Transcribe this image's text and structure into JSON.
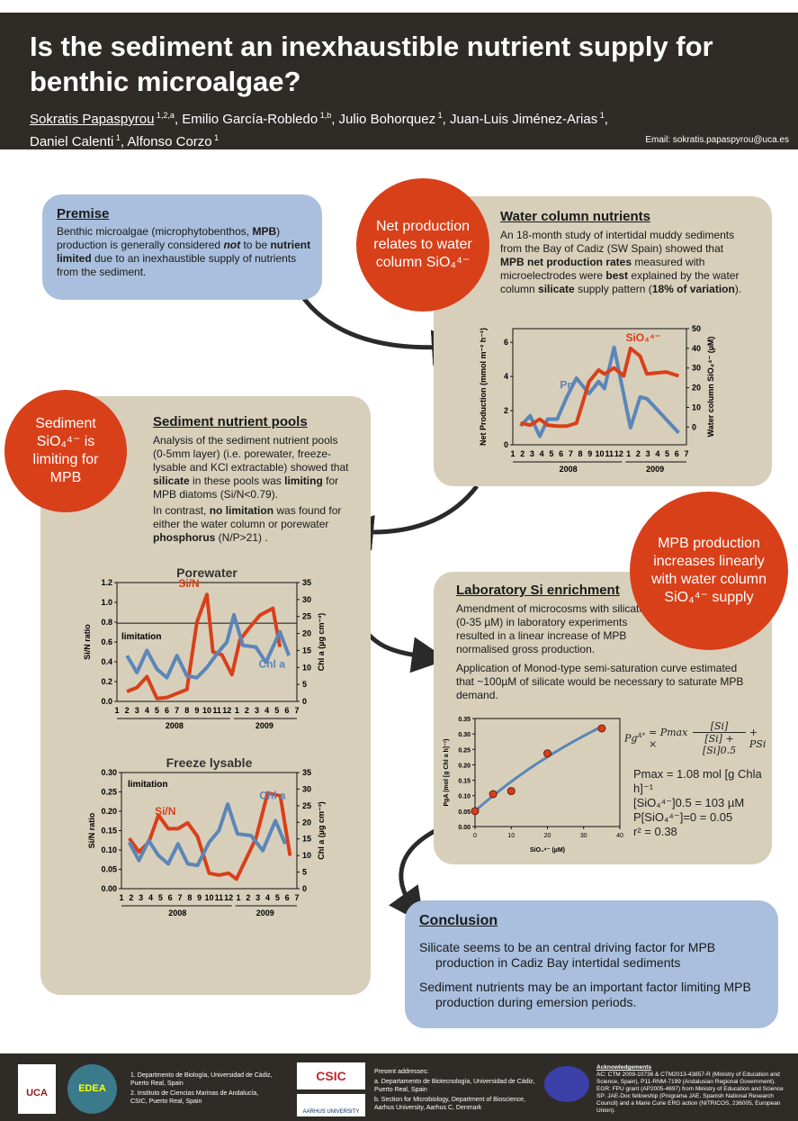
{
  "header": {
    "title": "Is the sediment an inexhaustible nutrient supply for benthic microalgae?",
    "authors": [
      {
        "name": "Sokratis Papaspyrou",
        "sup": "1,2,a"
      },
      {
        "name": "Emilio García-Robledo",
        "sup": "1,b"
      },
      {
        "name": "Julio Bohorquez",
        "sup": "1"
      },
      {
        "name": "Juan-Luis Jiménez-Arias",
        "sup": "1"
      },
      {
        "name": "Daniel Calenti",
        "sup": "1"
      },
      {
        "name": "Alfonso Corzo",
        "sup": "1"
      }
    ],
    "email": "Email: sokratis.papaspyrou@uca.es"
  },
  "colors": {
    "header_bg": "#2f2c28",
    "beige_box": "#d8cfbb",
    "blue_box": "#a9bfdd",
    "red_circle": "#d8401a",
    "series_red": "#d8401a",
    "series_blue": "#5b86b8"
  },
  "premise": {
    "heading": "Premise",
    "segments": [
      {
        "t": "Benthic microalgae (microphytobenthos, "
      },
      {
        "t": "MPB",
        "b": true
      },
      {
        "t": ") production is generally considered "
      },
      {
        "t": "not",
        "b": true,
        "i": true
      },
      {
        "t": " to be "
      },
      {
        "t": "nutrient limited",
        "b": true
      },
      {
        "t": " due to an inexhaustible supply of nutrients from the sediment."
      }
    ]
  },
  "circle_net": "Net production relates to water column SiO₄⁴⁻",
  "water": {
    "heading": "Water column nutrients",
    "segments": [
      {
        "t": "An 18-month study of intertidal muddy sediments from the Bay of Cadiz (SW Spain) showed that "
      },
      {
        "t": "MPB net production rates",
        "b": true
      },
      {
        "t": " measured with microelectrodes were "
      },
      {
        "t": "best",
        "b": true
      },
      {
        "t": " explained by the water column "
      },
      {
        "t": "silicate",
        "b": true
      },
      {
        "t": " supply pattern ("
      },
      {
        "t": "18% of variation",
        "b": true
      },
      {
        "t": ")."
      }
    ]
  },
  "circle_sediment": "Sediment SiO₄⁴⁻ is limiting for MPB",
  "sediment": {
    "heading": "Sediment nutrient pools",
    "p1": [
      {
        "t": "Analysis of the sediment nutrient pools (0-5mm layer) (i.e. porewater, freeze-lysable and KCl extractable) showed that "
      },
      {
        "t": "silicate",
        "b": true
      },
      {
        "t": " in these pools was "
      },
      {
        "t": "limiting",
        "b": true
      },
      {
        "t": " for MPB diatoms (Si/N<0.79)."
      }
    ],
    "p2": [
      {
        "t": "In contrast, "
      },
      {
        "t": "no limitation",
        "b": true
      },
      {
        "t": " was found for either the water column or porewater "
      },
      {
        "t": "phosphorus",
        "b": true
      },
      {
        "t": " (N/P>21) ."
      }
    ]
  },
  "circle_mpb": "MPB production increases linearly with water column SiO₄⁴⁻ supply",
  "lab": {
    "heading": "Laboratory Si enrichment",
    "p1": "Amendment of microcosms with silicate (0-35 µM) in laboratory experiments resulted in a linear increase of MPB normalised gross production.",
    "p2": "Application of Monod-type semi-saturation curve estimated that ~100µM of silicate would be necessary to saturate MPB demand.",
    "equation": "P_g^A* = P_max × [Si] / ([Si] + [Si]_0.5) + P_Si",
    "eq_lhs": "Pg",
    "eq_lhs_sup": "A*",
    "eq_mid": "= Pmax ×",
    "eq_num": "[Si]",
    "eq_den": "[Si] + [Si]0.5",
    "eq_tail": "+ PSi",
    "params": [
      "Pmax = 1.08 mol [g Chla h]⁻¹",
      "[SiO₄⁴⁻]0.5 = 103 µM",
      "P[SiO₄⁴⁻]=0 = 0.05",
      "r² = 0.38"
    ]
  },
  "conclusion": {
    "heading": "Conclusion",
    "items": [
      "Silicate seems to be an central driving factor for MPB production in Cadiz Bay intertidal sediments",
      "Sediment nutrients may be an important factor limiting MPB production during emersion periods."
    ]
  },
  "footer": {
    "uca_logo": "UCA Universidad de Cádiz",
    "edea_logo": "EDEA",
    "csic_logo": "CSIC",
    "aarhus_logo": "AARHUS UNIVERSITY",
    "affiliations": [
      "1. Departmento de Biología, Universidad de Cádiz, Puerto Real, Spain",
      "2. Instituto de Ciencias Marinas de Andalucía, CSIC, Puerto Real, Spain"
    ],
    "present_title": "Present addresses:",
    "present": [
      "a. Departamento de Biotecnología, Universidad de Cádiz, Puerto Real, Spain",
      "b. Section for Microbiology, Department of Bioscience, Aarhus University, Aarhus C, Denmark"
    ],
    "ack_title": "Acknowledgements",
    "ack": [
      "AC: CTM 2009-10736 & CTM2013-43857-R (Ministry of Education and Science, Spain), P11-RNM-7199 (Andalusian Regional Government).",
      "EGR: FPU grant (AP2005-4697) from Ministry of Education and Science",
      "SP: JAE-Doc fellowship (Programa JAE, Spanish National Research Council) and a Marie Curie ERG action (NITRICOS, 236005, European Union)."
    ]
  },
  "chart_data": [
    {
      "id": "water",
      "type": "line",
      "title": "",
      "xlabel": "",
      "ylabel": "Net Production (mmol m⁻² h⁻¹)",
      "y2label": "Water column SiO₄⁴⁻ (µM)",
      "x_tick_labels": [
        "1",
        "2",
        "3",
        "4",
        "5",
        "6",
        "7",
        "8",
        "9",
        "10",
        "11",
        "12",
        "1",
        "2",
        "3",
        "4",
        "5",
        "6",
        "7"
      ],
      "years": [
        "2008",
        "2009"
      ],
      "ylim": [
        0,
        6.8
      ],
      "yticks": [
        0,
        2,
        4,
        6
      ],
      "y2lim": [
        -9,
        50
      ],
      "y2ticks": [
        0,
        10,
        20,
        30,
        40,
        50
      ],
      "xlim": [
        1,
        19
      ],
      "series": [
        {
          "name": "Pn",
          "axis": "left",
          "color": "#5b86b8",
          "x": [
            1.8,
            2.8,
            3.8,
            4.6,
            5.6,
            6.6,
            7.6,
            8.9,
            9.9,
            10.5,
            11.5,
            13.2,
            14.2,
            14.9,
            18.2
          ],
          "y": [
            1.1,
            1.7,
            0.5,
            1.5,
            1.5,
            2.8,
            3.9,
            3.0,
            3.7,
            3.3,
            5.7,
            1.0,
            2.8,
            2.7,
            0.7
          ]
        },
        {
          "name": "SiO₄⁴⁻",
          "axis": "right",
          "color": "#d8401a",
          "x": [
            1.8,
            2.8,
            3.8,
            4.6,
            5.6,
            6.6,
            7.6,
            8.9,
            9.9,
            10.5,
            11.5,
            12.5,
            13.2,
            14.2,
            14.9,
            16.9,
            18.2
          ],
          "y": [
            2,
            1,
            4,
            1,
            0.5,
            0.5,
            2,
            23,
            29,
            27,
            30,
            26,
            40,
            36,
            27,
            28,
            26
          ]
        }
      ]
    },
    {
      "id": "porewater",
      "type": "line",
      "title": "Porewater",
      "ylabel": "Si/N ratio",
      "y2label": "Chl a (µg cm⁻³)",
      "x_tick_labels": [
        "1",
        "2",
        "3",
        "4",
        "5",
        "6",
        "7",
        "8",
        "9",
        "10",
        "11",
        "12",
        "1",
        "2",
        "3",
        "4",
        "5",
        "6",
        "7"
      ],
      "years": [
        "2008",
        "2009"
      ],
      "ylim": [
        0,
        1.2
      ],
      "yticks": [
        0,
        0.2,
        0.4,
        0.6,
        0.8,
        1.0,
        1.2
      ],
      "ytick_labels": [
        "0.0",
        "0.2",
        "0.4",
        "0.6",
        "0.8",
        "1.0",
        "1.2"
      ],
      "y2lim": [
        0,
        35
      ],
      "y2ticks": [
        0,
        5,
        10,
        15,
        20,
        25,
        30,
        35
      ],
      "xlim": [
        1,
        19
      ],
      "threshold": {
        "value": 0.79,
        "label": "limitation"
      },
      "series": [
        {
          "name": "Si/N",
          "axis": "left",
          "color": "#d8401a",
          "x": [
            2,
            3,
            4,
            5,
            6,
            7,
            8,
            9,
            10,
            10.6,
            11.5,
            12.5,
            13.3,
            14.3,
            15.3,
            16.6,
            17.3
          ],
          "y": [
            0.1,
            0.14,
            0.25,
            0.03,
            0.04,
            0.08,
            0.12,
            0.8,
            1.08,
            0.5,
            0.47,
            0.27,
            0.62,
            0.75,
            0.87,
            0.94,
            0.55
          ]
        },
        {
          "name": "Chl a",
          "axis": "right",
          "color": "#5b86b8",
          "x": [
            2,
            3,
            4,
            5,
            6,
            7,
            8,
            9,
            10,
            11,
            12,
            12.7,
            13.6,
            14.9,
            15.9,
            17.3,
            18.2
          ],
          "y": [
            13.5,
            8.5,
            15,
            9.5,
            7,
            13.5,
            7.5,
            7,
            10,
            14,
            17.5,
            25.5,
            16.5,
            16,
            11.5,
            20.5,
            13.5
          ]
        }
      ]
    },
    {
      "id": "freeze",
      "type": "line",
      "title": "Freeze lysable",
      "ylabel": "Si/N ratio",
      "y2label": "Chl a (µg cm⁻³)",
      "x_tick_labels": [
        "1",
        "2",
        "3",
        "4",
        "5",
        "6",
        "7",
        "8",
        "9",
        "10",
        "11",
        "12",
        "1",
        "2",
        "3",
        "4",
        "5",
        "6",
        "7"
      ],
      "years": [
        "2008",
        "2009"
      ],
      "ylim": [
        0,
        0.3
      ],
      "yticks": [
        0,
        0.05,
        0.1,
        0.15,
        0.2,
        0.25,
        0.3
      ],
      "ytick_labels": [
        "0.00",
        "0.05",
        "0.10",
        "0.15",
        "0.20",
        "0.25",
        "0.30"
      ],
      "y2lim": [
        0,
        35
      ],
      "y2ticks": [
        0,
        5,
        10,
        15,
        20,
        25,
        30,
        35
      ],
      "xlim": [
        1,
        19
      ],
      "annotation": "limitation",
      "series": [
        {
          "name": "Si/N",
          "axis": "left",
          "color": "#d8401a",
          "x": [
            1.8,
            2.8,
            3.8,
            4.8,
            5.8,
            6.8,
            7.8,
            8.8,
            10,
            11,
            12,
            12.8,
            14.8,
            16,
            17.3,
            18.3
          ],
          "y": [
            0.13,
            0.095,
            0.12,
            0.19,
            0.155,
            0.155,
            0.17,
            0.135,
            0.04,
            0.035,
            0.04,
            0.025,
            0.13,
            0.247,
            0.24,
            0.085
          ]
        },
        {
          "name": "Chl a",
          "axis": "right",
          "color": "#5b86b8",
          "x": [
            1.8,
            2.8,
            3.8,
            4.8,
            5.8,
            6.8,
            7.8,
            8.8,
            10,
            11,
            11.9,
            12.9,
            14.3,
            15.5,
            16.8,
            17.8
          ],
          "y": [
            14,
            8.5,
            14.5,
            10,
            7.5,
            13.5,
            7.5,
            7,
            14,
            17.5,
            25.5,
            16.5,
            16,
            11.5,
            20.5,
            13.5
          ]
        }
      ]
    },
    {
      "id": "lab",
      "type": "scatter",
      "title": "",
      "xlabel": "SiO₄⁴⁻ (µM)",
      "ylabel": "PgA (mol [g Chl a h]⁻¹)",
      "xlim": [
        0,
        40
      ],
      "xticks": [
        0,
        10,
        20,
        30,
        40
      ],
      "ylim": [
        0,
        0.35
      ],
      "yticks": [
        0,
        0.05,
        0.1,
        0.15,
        0.2,
        0.25,
        0.3,
        0.35
      ],
      "ytick_labels": [
        "0.00",
        "0.05",
        "0.10",
        "0.15",
        "0.20",
        "0.25",
        "0.30",
        "0.35"
      ],
      "points": {
        "x": [
          0,
          5,
          10,
          20,
          35
        ],
        "y": [
          0.05,
          0.105,
          0.115,
          0.237,
          0.318
        ],
        "color": "#d8401a"
      },
      "fit": {
        "pmax": 1.08,
        "k": 103,
        "p0": 0.05,
        "color": "#5b86b8"
      }
    }
  ]
}
